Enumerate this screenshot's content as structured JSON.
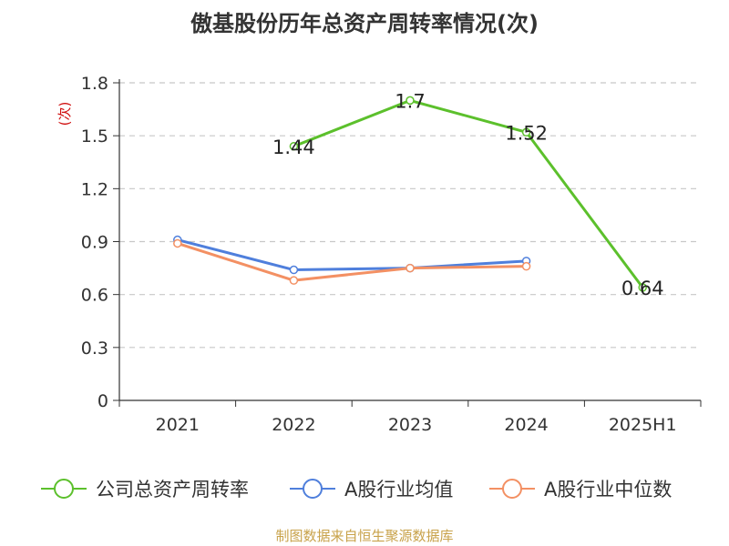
{
  "chart_data": {
    "type": "line",
    "title": "傲基股份历年总资产周转率情况(次)",
    "ylabel": "(次)",
    "xlabel": "",
    "categories": [
      "2021",
      "2022",
      "2023",
      "2024",
      "2025H1"
    ],
    "ylim": [
      0,
      1.8
    ],
    "yticks": [
      "0",
      "0.3",
      "0.6",
      "0.9",
      "1.2",
      "1.5",
      "1.8"
    ],
    "grid": true,
    "legend_position": "bottom",
    "series": [
      {
        "name": "公司总资产周转率",
        "color": "#5cc02c",
        "values": [
          null,
          1.44,
          1.7,
          1.52,
          0.64
        ],
        "labels": [
          "",
          "1.44",
          "1.7",
          "1.52",
          "0.64"
        ]
      },
      {
        "name": "A股行业均值",
        "color": "#4f7fdc",
        "values": [
          0.91,
          0.74,
          0.75,
          0.79,
          null
        ],
        "labels": [
          "",
          "",
          "",
          "",
          ""
        ]
      },
      {
        "name": "A股行业中位数",
        "color": "#f39063",
        "values": [
          0.89,
          0.68,
          0.75,
          0.76,
          null
        ],
        "labels": [
          "",
          "",
          "",
          "",
          ""
        ]
      }
    ]
  },
  "source": "制图数据来自恒生聚源数据库"
}
